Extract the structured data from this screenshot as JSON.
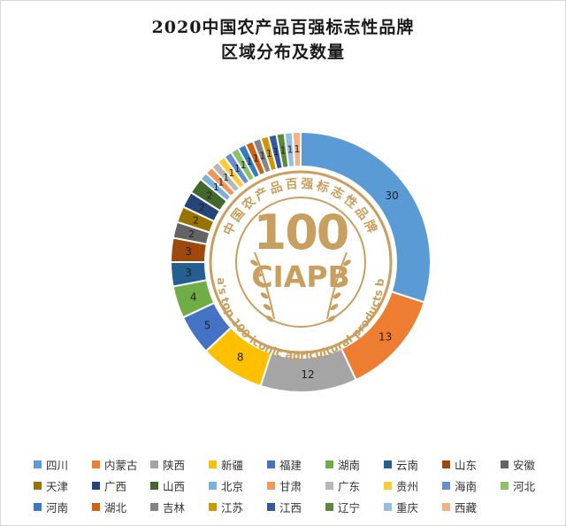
{
  "chart_data": {
    "type": "donut",
    "title": "2020中国农产品百强标志性品牌",
    "subtitle": "区域分布及数量",
    "categories": [
      "四川",
      "内蒙古",
      "陕西",
      "新疆",
      "福建",
      "湖南",
      "云南",
      "山东",
      "安徽",
      "天津",
      "广西",
      "山西",
      "北京",
      "甘肃",
      "广东",
      "贵州",
      "海南",
      "河北",
      "河南",
      "湖北",
      "吉林",
      "江苏",
      "江西",
      "辽宁",
      "重庆",
      "西藏"
    ],
    "values": [
      30,
      13,
      12,
      8,
      5,
      4,
      3,
      3,
      2,
      2,
      2,
      2,
      1,
      1,
      1,
      1,
      1,
      1,
      1,
      1,
      1,
      1,
      1,
      1,
      1,
      1
    ],
    "colors": [
      "#5b9bd5",
      "#ed7d31",
      "#a5a5a5",
      "#ffc000",
      "#4472c4",
      "#70ad47",
      "#255e91",
      "#9e480e",
      "#636363",
      "#997300",
      "#264478",
      "#43682b",
      "#7cafdd",
      "#f1975a",
      "#b7b7b7",
      "#ffcd33",
      "#698ed0",
      "#8cc168",
      "#327dc2",
      "#d26012",
      "#848484",
      "#cc9a00",
      "#335aa1",
      "#5a8a39",
      "#95bee3",
      "#f4b183"
    ],
    "legend_position": "bottom",
    "center_logo": {
      "number": "100",
      "acronym": "CIAPB",
      "ring_text_cn": "中国农产品百强标志性品牌",
      "ring_text_en": "China's top 100 iconic agricultural products brand",
      "color": "#c89f5e"
    }
  }
}
